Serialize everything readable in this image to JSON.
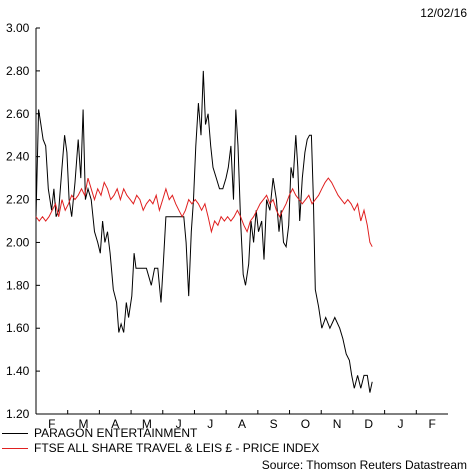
{
  "date_stamp": "12/02/16",
  "source": "Source: Thomson Reuters Datastream",
  "chart_data": {
    "type": "line",
    "title": "",
    "ylim": [
      1.2,
      3.0
    ],
    "y_ticks": [
      "1.20",
      "1.40",
      "1.60",
      "1.80",
      "2.00",
      "2.20",
      "2.40",
      "2.60",
      "2.80",
      "3.00"
    ],
    "x_ticks": [
      "F",
      "M",
      "A",
      "M",
      "J",
      "J",
      "A",
      "S",
      "O",
      "N",
      "D",
      "J",
      "F"
    ],
    "grid": false,
    "legend_position": "bottom",
    "series": [
      {
        "name": "PARAGON ENTERTAINMENT",
        "color": "#000000",
        "points": [
          [
            0,
            2.12
          ],
          [
            0.08,
            2.62
          ],
          [
            0.15,
            2.55
          ],
          [
            0.22,
            2.48
          ],
          [
            0.3,
            2.45
          ],
          [
            0.38,
            2.25
          ],
          [
            0.48,
            2.15
          ],
          [
            0.55,
            2.25
          ],
          [
            0.62,
            2.12
          ],
          [
            0.7,
            2.15
          ],
          [
            0.8,
            2.35
          ],
          [
            0.88,
            2.5
          ],
          [
            0.95,
            2.42
          ],
          [
            1.02,
            2.2
          ],
          [
            1.1,
            2.12
          ],
          [
            1.2,
            2.28
          ],
          [
            1.3,
            2.48
          ],
          [
            1.38,
            2.3
          ],
          [
            1.45,
            2.62
          ],
          [
            1.52,
            2.2
          ],
          [
            1.6,
            2.25
          ],
          [
            1.7,
            2.2
          ],
          [
            1.8,
            2.05
          ],
          [
            1.9,
            2.0
          ],
          [
            1.98,
            1.95
          ],
          [
            2.05,
            2.1
          ],
          [
            2.12,
            2.0
          ],
          [
            2.2,
            2.05
          ],
          [
            2.28,
            1.95
          ],
          [
            2.38,
            1.78
          ],
          [
            2.48,
            1.72
          ],
          [
            2.55,
            1.58
          ],
          [
            2.62,
            1.62
          ],
          [
            2.7,
            1.58
          ],
          [
            2.78,
            1.72
          ],
          [
            2.85,
            1.65
          ],
          [
            2.95,
            1.75
          ],
          [
            3.02,
            1.95
          ],
          [
            3.08,
            1.88
          ],
          [
            3.2,
            1.88
          ],
          [
            3.4,
            1.88
          ],
          [
            3.55,
            1.8
          ],
          [
            3.65,
            1.88
          ],
          [
            3.75,
            1.88
          ],
          [
            3.85,
            1.72
          ],
          [
            3.92,
            1.9
          ],
          [
            4.0,
            2.12
          ],
          [
            4.15,
            2.12
          ],
          [
            4.35,
            2.12
          ],
          [
            4.55,
            2.12
          ],
          [
            4.62,
            2.0
          ],
          [
            4.7,
            1.75
          ],
          [
            4.78,
            2.05
          ],
          [
            4.85,
            2.2
          ],
          [
            4.92,
            2.45
          ],
          [
            5.0,
            2.65
          ],
          [
            5.08,
            2.5
          ],
          [
            5.15,
            2.8
          ],
          [
            5.22,
            2.55
          ],
          [
            5.3,
            2.6
          ],
          [
            5.38,
            2.45
          ],
          [
            5.45,
            2.35
          ],
          [
            5.55,
            2.3
          ],
          [
            5.65,
            2.25
          ],
          [
            5.75,
            2.25
          ],
          [
            5.85,
            2.3
          ],
          [
            5.92,
            2.35
          ],
          [
            6.0,
            2.45
          ],
          [
            6.08,
            2.2
          ],
          [
            6.15,
            2.62
          ],
          [
            6.22,
            2.45
          ],
          [
            6.3,
            2.1
          ],
          [
            6.38,
            1.85
          ],
          [
            6.45,
            1.8
          ],
          [
            6.55,
            1.9
          ],
          [
            6.62,
            2.1
          ],
          [
            6.7,
            2.0
          ],
          [
            6.78,
            2.15
          ],
          [
            6.85,
            2.05
          ],
          [
            6.95,
            2.1
          ],
          [
            7.02,
            1.92
          ],
          [
            7.1,
            2.2
          ],
          [
            7.2,
            2.15
          ],
          [
            7.3,
            2.3
          ],
          [
            7.4,
            2.2
          ],
          [
            7.48,
            2.05
          ],
          [
            7.55,
            2.15
          ],
          [
            7.62,
            2.0
          ],
          [
            7.7,
            1.98
          ],
          [
            7.78,
            2.08
          ],
          [
            7.85,
            2.35
          ],
          [
            7.92,
            2.3
          ],
          [
            8.0,
            2.5
          ],
          [
            8.06,
            2.35
          ],
          [
            8.12,
            2.1
          ],
          [
            8.2,
            2.3
          ],
          [
            8.28,
            2.42
          ],
          [
            8.35,
            2.48
          ],
          [
            8.42,
            2.5
          ],
          [
            8.48,
            2.5
          ],
          [
            8.54,
            2.2
          ],
          [
            8.6,
            1.78
          ],
          [
            8.7,
            1.7
          ],
          [
            8.8,
            1.6
          ],
          [
            8.92,
            1.65
          ],
          [
            9.05,
            1.6
          ],
          [
            9.2,
            1.65
          ],
          [
            9.35,
            1.6
          ],
          [
            9.45,
            1.55
          ],
          [
            9.55,
            1.48
          ],
          [
            9.65,
            1.45
          ],
          [
            9.72,
            1.38
          ],
          [
            9.8,
            1.32
          ],
          [
            9.9,
            1.38
          ],
          [
            10.0,
            1.32
          ],
          [
            10.1,
            1.38
          ],
          [
            10.2,
            1.38
          ],
          [
            10.28,
            1.3
          ],
          [
            10.35,
            1.35
          ]
        ]
      },
      {
        "name": "FTSE ALL SHARE TRAVEL & LEIS £ - PRICE INDEX",
        "color": "#e02020",
        "points": [
          [
            0,
            2.12
          ],
          [
            0.1,
            2.1
          ],
          [
            0.2,
            2.12
          ],
          [
            0.3,
            2.1
          ],
          [
            0.4,
            2.12
          ],
          [
            0.5,
            2.15
          ],
          [
            0.6,
            2.18
          ],
          [
            0.7,
            2.12
          ],
          [
            0.8,
            2.2
          ],
          [
            0.9,
            2.15
          ],
          [
            1.0,
            2.18
          ],
          [
            1.1,
            2.22
          ],
          [
            1.2,
            2.2
          ],
          [
            1.3,
            2.22
          ],
          [
            1.4,
            2.25
          ],
          [
            1.5,
            2.22
          ],
          [
            1.6,
            2.3
          ],
          [
            1.7,
            2.25
          ],
          [
            1.8,
            2.2
          ],
          [
            1.9,
            2.25
          ],
          [
            2.0,
            2.22
          ],
          [
            2.1,
            2.28
          ],
          [
            2.2,
            2.25
          ],
          [
            2.3,
            2.2
          ],
          [
            2.4,
            2.22
          ],
          [
            2.5,
            2.25
          ],
          [
            2.6,
            2.2
          ],
          [
            2.7,
            2.25
          ],
          [
            2.8,
            2.22
          ],
          [
            2.9,
            2.2
          ],
          [
            3.0,
            2.18
          ],
          [
            3.1,
            2.22
          ],
          [
            3.2,
            2.2
          ],
          [
            3.3,
            2.15
          ],
          [
            3.4,
            2.18
          ],
          [
            3.5,
            2.2
          ],
          [
            3.6,
            2.18
          ],
          [
            3.7,
            2.22
          ],
          [
            3.8,
            2.15
          ],
          [
            3.9,
            2.2
          ],
          [
            4.0,
            2.25
          ],
          [
            4.1,
            2.2
          ],
          [
            4.2,
            2.22
          ],
          [
            4.3,
            2.18
          ],
          [
            4.4,
            2.15
          ],
          [
            4.5,
            2.12
          ],
          [
            4.6,
            2.15
          ],
          [
            4.7,
            2.2
          ],
          [
            4.8,
            2.18
          ],
          [
            4.9,
            2.2
          ],
          [
            5.0,
            2.18
          ],
          [
            5.1,
            2.15
          ],
          [
            5.2,
            2.18
          ],
          [
            5.3,
            2.12
          ],
          [
            5.4,
            2.05
          ],
          [
            5.5,
            2.1
          ],
          [
            5.6,
            2.08
          ],
          [
            5.7,
            2.12
          ],
          [
            5.8,
            2.1
          ],
          [
            5.9,
            2.12
          ],
          [
            6.0,
            2.1
          ],
          [
            6.1,
            2.12
          ],
          [
            6.2,
            2.15
          ],
          [
            6.3,
            2.12
          ],
          [
            6.4,
            2.08
          ],
          [
            6.5,
            2.05
          ],
          [
            6.6,
            2.1
          ],
          [
            6.7,
            2.12
          ],
          [
            6.8,
            2.15
          ],
          [
            6.9,
            2.18
          ],
          [
            7.0,
            2.2
          ],
          [
            7.1,
            2.22
          ],
          [
            7.2,
            2.18
          ],
          [
            7.3,
            2.2
          ],
          [
            7.4,
            2.15
          ],
          [
            7.5,
            2.12
          ],
          [
            7.6,
            2.15
          ],
          [
            7.7,
            2.18
          ],
          [
            7.8,
            2.22
          ],
          [
            7.9,
            2.25
          ],
          [
            8.0,
            2.22
          ],
          [
            8.1,
            2.2
          ],
          [
            8.2,
            2.18
          ],
          [
            8.3,
            2.2
          ],
          [
            8.4,
            2.22
          ],
          [
            8.5,
            2.18
          ],
          [
            8.6,
            2.2
          ],
          [
            8.7,
            2.22
          ],
          [
            8.8,
            2.25
          ],
          [
            8.9,
            2.28
          ],
          [
            9.0,
            2.3
          ],
          [
            9.1,
            2.28
          ],
          [
            9.2,
            2.25
          ],
          [
            9.3,
            2.22
          ],
          [
            9.4,
            2.2
          ],
          [
            9.5,
            2.18
          ],
          [
            9.6,
            2.2
          ],
          [
            9.7,
            2.18
          ],
          [
            9.8,
            2.15
          ],
          [
            9.9,
            2.18
          ],
          [
            10.0,
            2.1
          ],
          [
            10.1,
            2.15
          ],
          [
            10.2,
            2.08
          ],
          [
            10.28,
            2.0
          ],
          [
            10.35,
            1.98
          ]
        ]
      }
    ]
  }
}
